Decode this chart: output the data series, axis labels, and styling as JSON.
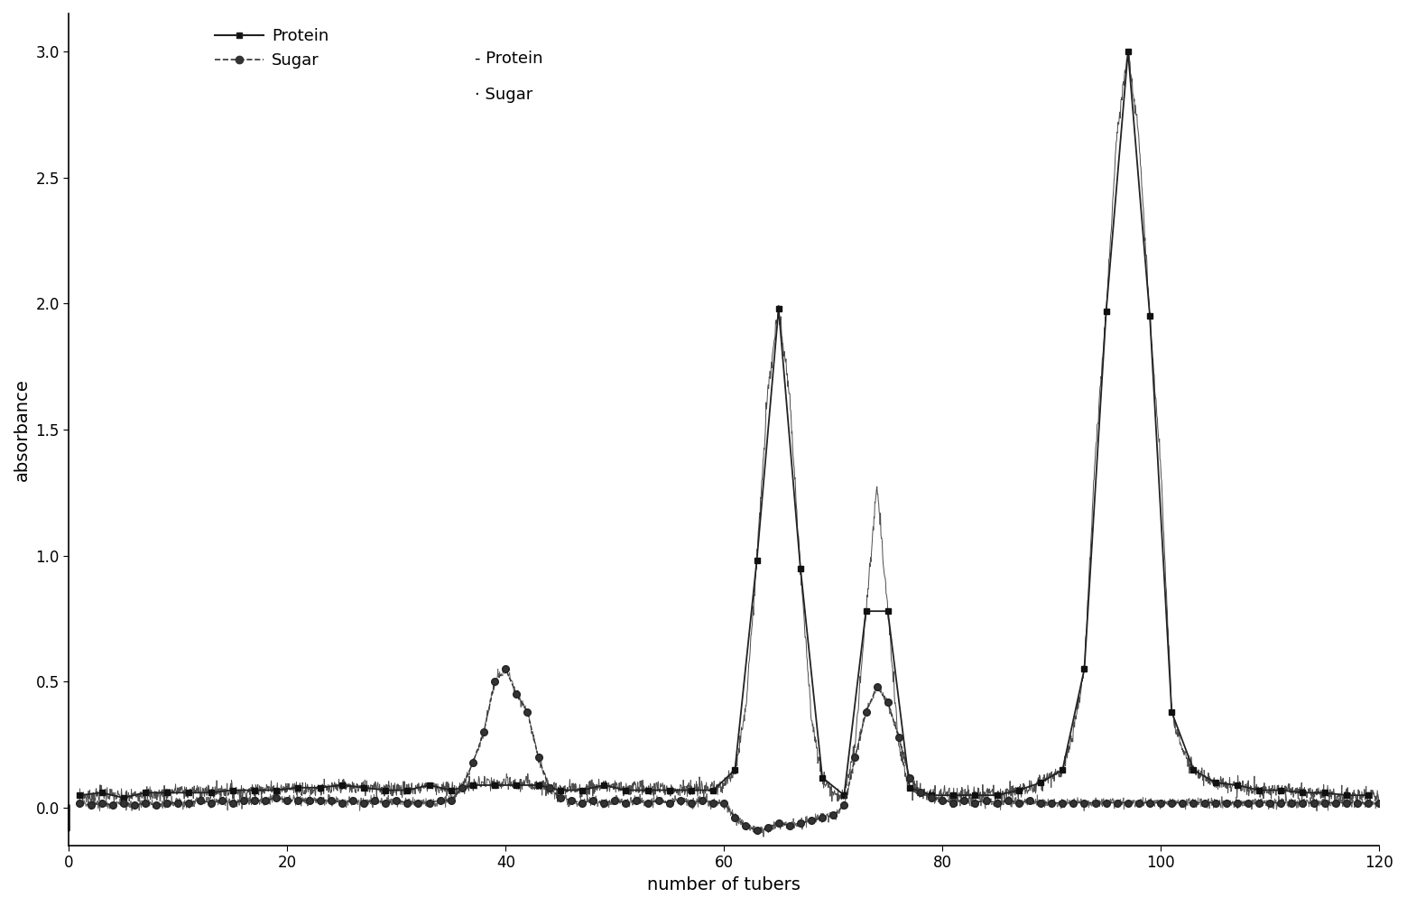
{
  "xlabel": "number of tubers",
  "ylabel": "absorbance",
  "xlim": [
    0,
    120
  ],
  "ylim": [
    -0.15,
    3.15
  ],
  "yticks": [
    0.0,
    0.5,
    1.0,
    1.5,
    2.0,
    2.5,
    3.0
  ],
  "xticks": [
    0,
    20,
    40,
    60,
    80,
    100,
    120
  ],
  "background_color": "#ffffff",
  "protein_x": [
    1,
    2,
    3,
    4,
    5,
    6,
    7,
    8,
    9,
    10,
    11,
    12,
    13,
    14,
    15,
    16,
    17,
    18,
    19,
    20,
    21,
    22,
    23,
    24,
    25,
    26,
    27,
    28,
    29,
    30,
    31,
    32,
    33,
    34,
    35,
    36,
    37,
    38,
    39,
    40,
    41,
    42,
    43,
    44,
    45,
    46,
    47,
    48,
    49,
    50,
    51,
    52,
    53,
    54,
    55,
    56,
    57,
    58,
    59,
    60,
    61,
    62,
    63,
    64,
    65,
    66,
    67,
    68,
    69,
    70,
    71,
    72,
    73,
    74,
    75,
    76,
    77,
    78,
    79,
    80,
    81,
    82,
    83,
    84,
    85,
    86,
    87,
    88,
    89,
    90,
    91,
    92,
    93,
    94,
    95,
    96,
    97,
    98,
    99,
    100,
    101,
    102,
    103,
    104,
    105,
    106,
    107,
    108,
    109,
    110,
    111,
    112,
    113,
    114,
    115,
    116,
    117,
    118,
    119,
    120
  ],
  "protein_y": [
    0.05,
    0.04,
    0.06,
    0.05,
    0.04,
    0.05,
    0.06,
    0.05,
    0.06,
    0.07,
    0.06,
    0.07,
    0.06,
    0.07,
    0.07,
    0.06,
    0.07,
    0.08,
    0.07,
    0.08,
    0.08,
    0.07,
    0.08,
    0.07,
    0.09,
    0.08,
    0.08,
    0.09,
    0.07,
    0.08,
    0.07,
    0.08,
    0.09,
    0.08,
    0.07,
    0.08,
    0.09,
    0.1,
    0.09,
    0.1,
    0.09,
    0.1,
    0.09,
    0.08,
    0.07,
    0.08,
    0.07,
    0.08,
    0.09,
    0.08,
    0.07,
    0.09,
    0.07,
    0.08,
    0.07,
    0.08,
    0.07,
    0.08,
    0.07,
    0.09,
    0.15,
    0.4,
    0.98,
    1.65,
    1.98,
    1.64,
    0.95,
    0.35,
    0.12,
    0.06,
    0.05,
    0.25,
    0.78,
    1.28,
    0.78,
    0.25,
    0.08,
    0.06,
    0.05,
    0.06,
    0.05,
    0.06,
    0.05,
    0.06,
    0.05,
    0.06,
    0.07,
    0.08,
    0.1,
    0.12,
    0.15,
    0.3,
    0.55,
    1.4,
    1.97,
    2.68,
    3.0,
    2.65,
    1.95,
    1.35,
    0.38,
    0.22,
    0.15,
    0.12,
    0.1,
    0.09,
    0.09,
    0.08,
    0.07,
    0.07,
    0.07,
    0.07,
    0.06,
    0.06,
    0.06,
    0.05,
    0.05,
    0.05,
    0.05,
    0.05
  ],
  "sugar_x": [
    1,
    2,
    3,
    4,
    5,
    6,
    7,
    8,
    9,
    10,
    11,
    12,
    13,
    14,
    15,
    16,
    17,
    18,
    19,
    20,
    21,
    22,
    23,
    24,
    25,
    26,
    27,
    28,
    29,
    30,
    31,
    32,
    33,
    34,
    35,
    36,
    37,
    38,
    39,
    40,
    41,
    42,
    43,
    44,
    45,
    46,
    47,
    48,
    49,
    50,
    51,
    52,
    53,
    54,
    55,
    56,
    57,
    58,
    59,
    60,
    61,
    62,
    63,
    64,
    65,
    66,
    67,
    68,
    69,
    70,
    71,
    72,
    73,
    74,
    75,
    76,
    77,
    78,
    79,
    80,
    81,
    82,
    83,
    84,
    85,
    86,
    87,
    88,
    89,
    90,
    91,
    92,
    93,
    94,
    95,
    96,
    97,
    98,
    99,
    100,
    101,
    102,
    103,
    104,
    105,
    106,
    107,
    108,
    109,
    110,
    111,
    112,
    113,
    114,
    115,
    116,
    117,
    118,
    119,
    120
  ],
  "sugar_y": [
    0.02,
    0.01,
    0.02,
    0.01,
    0.02,
    0.01,
    0.02,
    0.01,
    0.02,
    0.02,
    0.02,
    0.03,
    0.02,
    0.03,
    0.02,
    0.03,
    0.03,
    0.03,
    0.04,
    0.03,
    0.03,
    0.03,
    0.03,
    0.03,
    0.02,
    0.03,
    0.02,
    0.03,
    0.02,
    0.03,
    0.02,
    0.02,
    0.02,
    0.03,
    0.03,
    0.08,
    0.18,
    0.3,
    0.5,
    0.55,
    0.45,
    0.38,
    0.2,
    0.08,
    0.04,
    0.03,
    0.02,
    0.03,
    0.02,
    0.03,
    0.02,
    0.03,
    0.02,
    0.03,
    0.02,
    0.03,
    0.02,
    0.03,
    0.02,
    0.02,
    -0.04,
    -0.07,
    -0.09,
    -0.08,
    -0.06,
    -0.07,
    -0.06,
    -0.05,
    -0.04,
    -0.03,
    0.01,
    0.2,
    0.38,
    0.48,
    0.42,
    0.28,
    0.12,
    0.06,
    0.04,
    0.03,
    0.02,
    0.03,
    0.02,
    0.03,
    0.02,
    0.03,
    0.02,
    0.03,
    0.02,
    0.02,
    0.02,
    0.02,
    0.02,
    0.02,
    0.02,
    0.02,
    0.02,
    0.02,
    0.02,
    0.02,
    0.02,
    0.02,
    0.02,
    0.02,
    0.02,
    0.02,
    0.02,
    0.02,
    0.02,
    0.02,
    0.02,
    0.02,
    0.02,
    0.02,
    0.02,
    0.02,
    0.02,
    0.02,
    0.02,
    0.02
  ],
  "protein_marker_every": 2,
  "sugar_marker_every": 1
}
